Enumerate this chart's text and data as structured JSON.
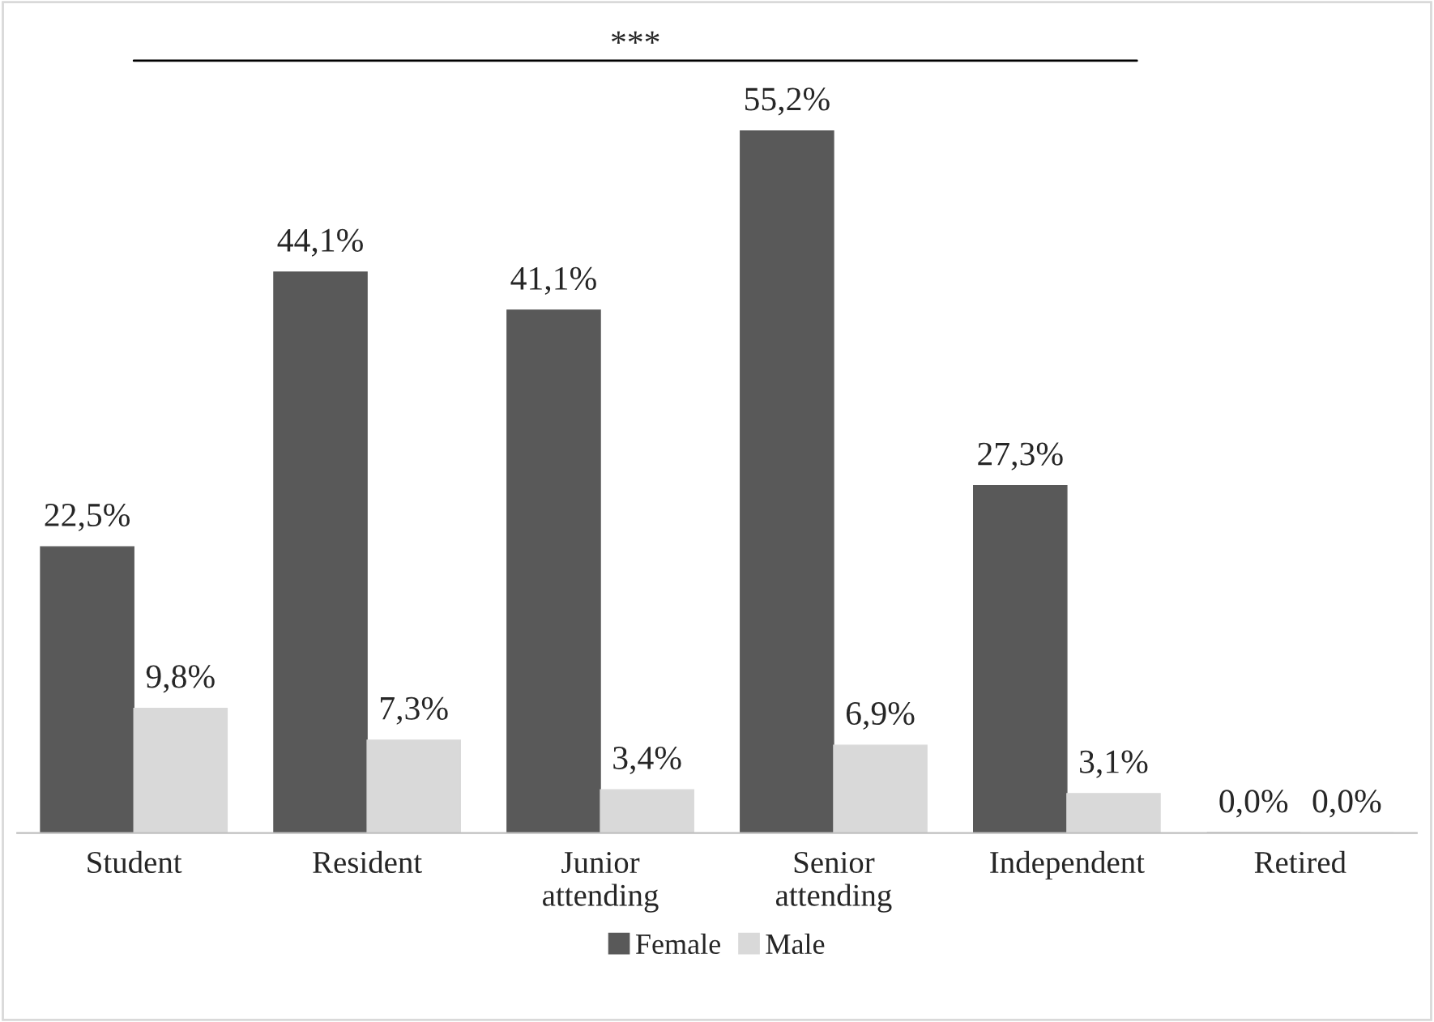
{
  "chart_data": {
    "type": "bar",
    "categories": [
      "Student",
      "Resident",
      "Junior\nattending",
      "Senior\nattending",
      "Independent",
      "Retired"
    ],
    "series": [
      {
        "name": "Female",
        "color": "#595959",
        "values": [
          22.5,
          44.1,
          41.1,
          55.2,
          27.3,
          0.0
        ],
        "value_labels": [
          "22,5%",
          "44,1%",
          "41,1%",
          "55,2%",
          "27,3%",
          "0,0%"
        ]
      },
      {
        "name": "Male",
        "color": "#d9d9d9",
        "values": [
          9.8,
          7.3,
          3.4,
          6.9,
          3.1,
          0.0
        ],
        "value_labels": [
          "9,8%",
          "7,3%",
          "3,4%",
          "6,9%",
          "3,1%",
          "0,0%"
        ]
      }
    ],
    "annotations": [
      "***"
    ],
    "legend": "bottom",
    "grid": false
  }
}
